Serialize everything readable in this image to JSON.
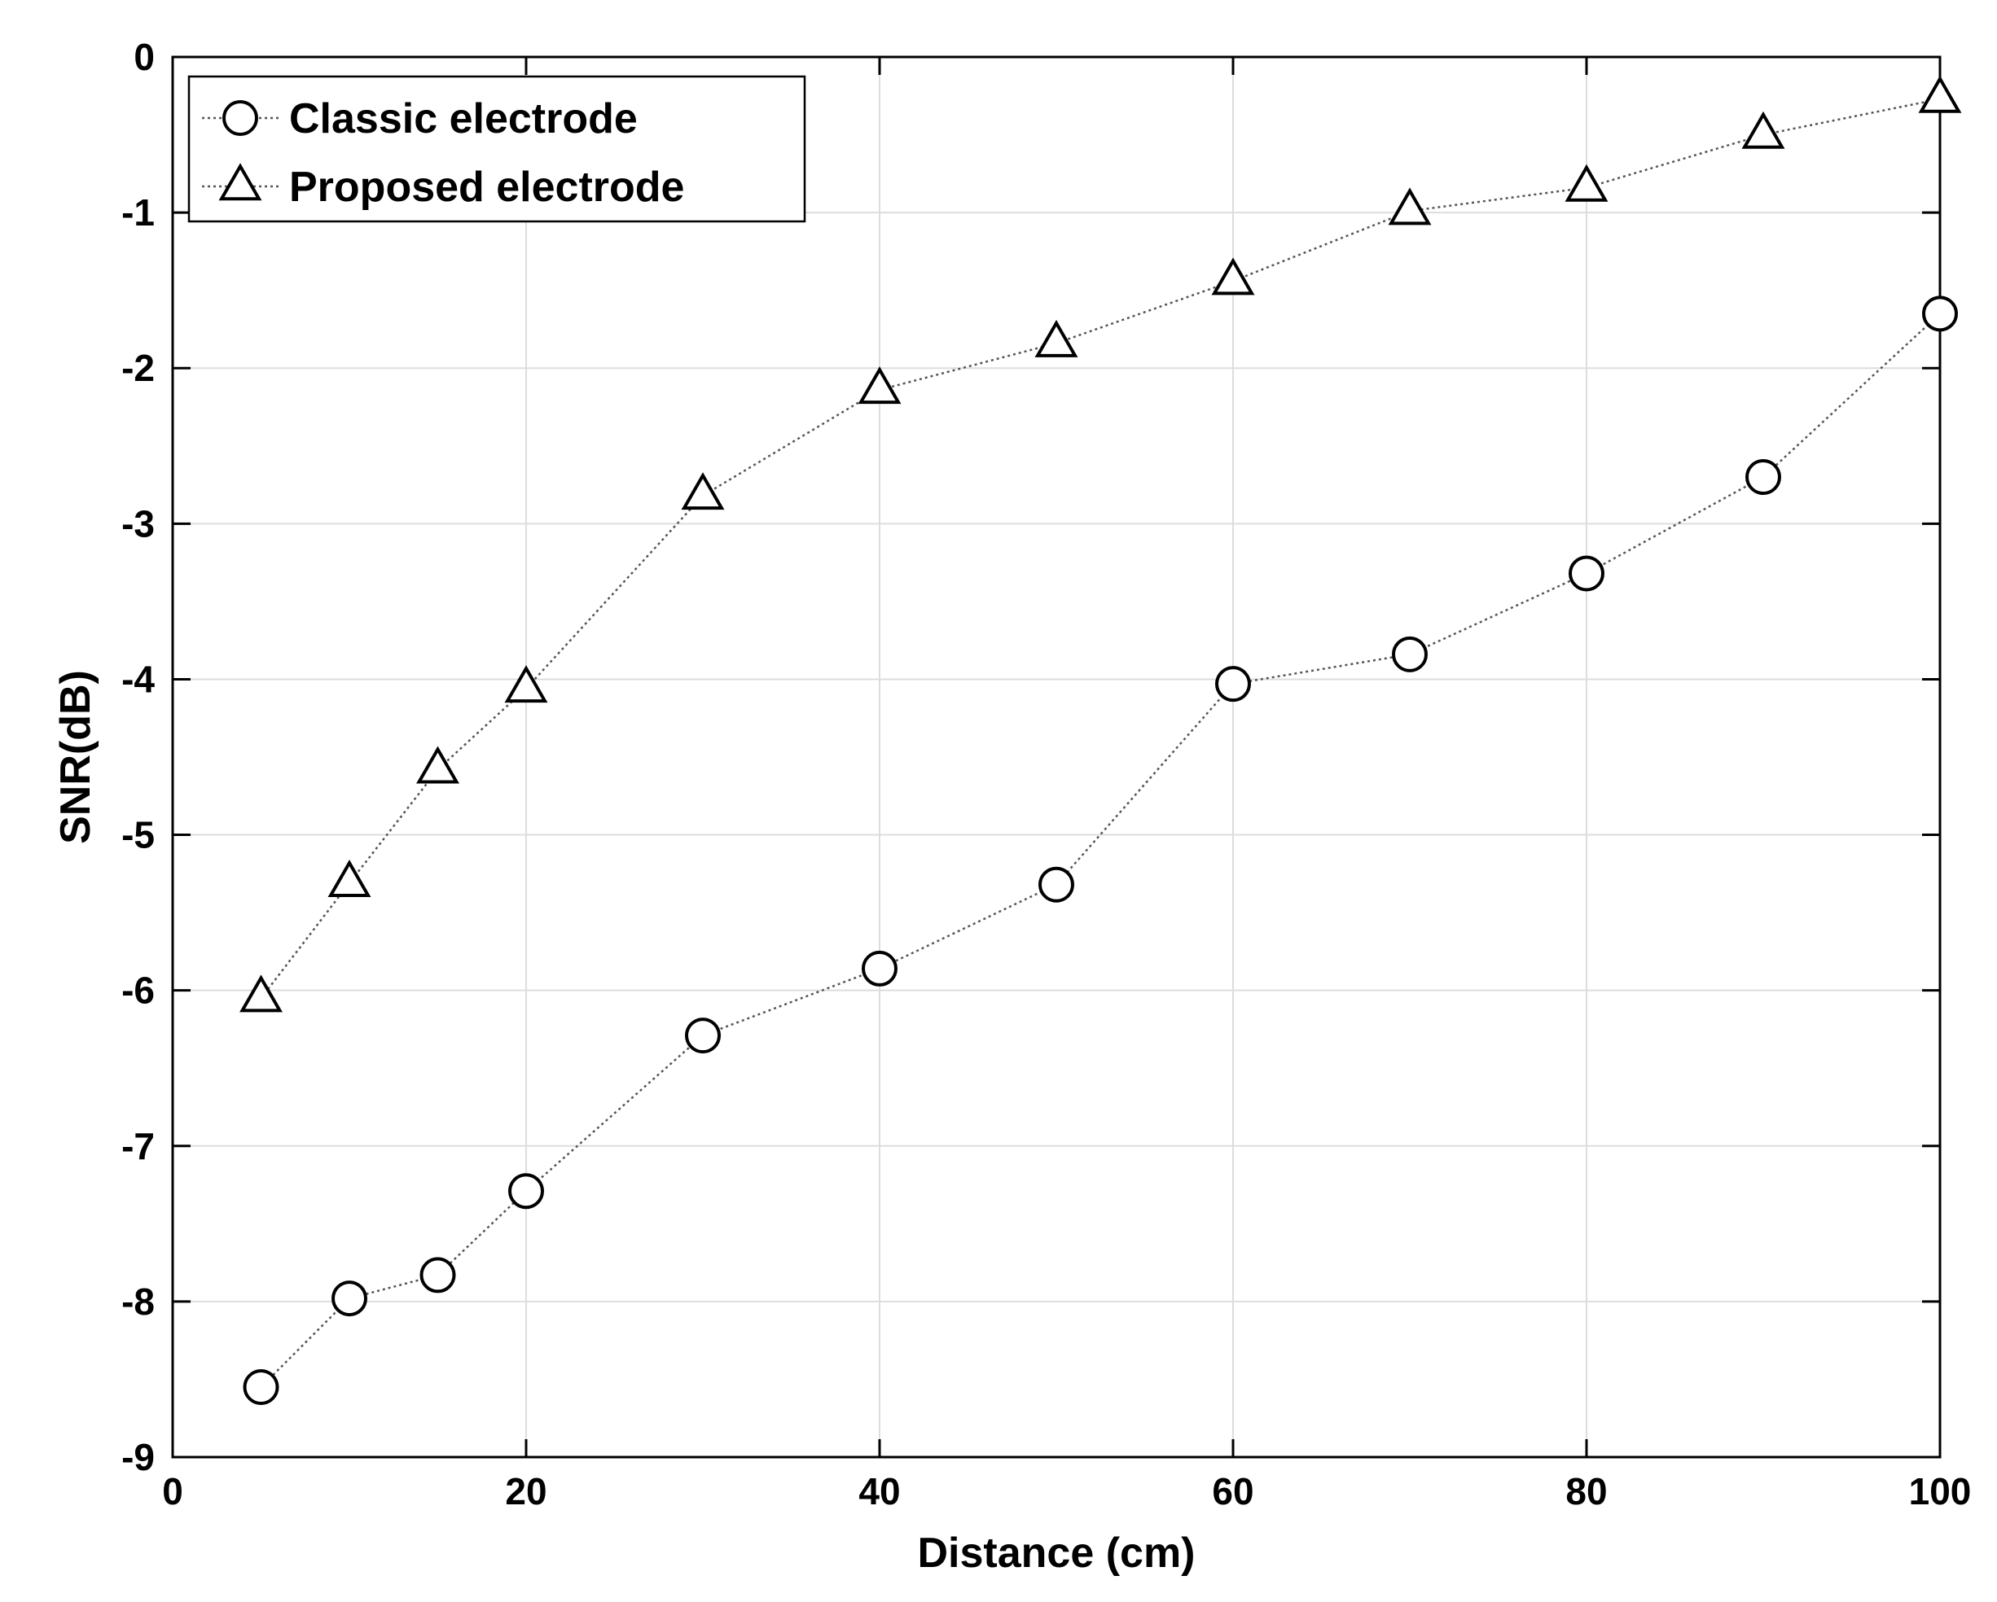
{
  "chart_data": {
    "type": "line",
    "xlabel": "Distance (cm)",
    "ylabel": "SNR(dB)",
    "xlim": [
      0,
      100
    ],
    "ylim": [
      -9,
      0
    ],
    "xticks": [
      0,
      20,
      40,
      60,
      80,
      100
    ],
    "yticks": [
      0,
      -1,
      -2,
      -3,
      -4,
      -5,
      -6,
      -7,
      -8,
      -9
    ],
    "x": [
      5,
      10,
      15,
      20,
      30,
      40,
      50,
      60,
      70,
      80,
      90,
      100
    ],
    "grid": true,
    "legend_position": "top-left",
    "series": [
      {
        "name": "Classic electrode",
        "marker": "circle",
        "line_style": "dotted",
        "values": [
          -8.55,
          -7.98,
          -7.83,
          -7.29,
          -6.29,
          -5.86,
          -5.32,
          -4.03,
          -3.84,
          -3.32,
          -2.7,
          -1.65
        ]
      },
      {
        "name": "Proposed electrode",
        "marker": "triangle",
        "line_style": "dotted",
        "values": [
          -6.05,
          -5.31,
          -4.58,
          -4.06,
          -2.82,
          -2.14,
          -1.84,
          -1.44,
          -0.99,
          -0.84,
          -0.5,
          -0.27
        ]
      }
    ],
    "colors": {
      "line": "#555555",
      "marker": "#000000",
      "grid": "#dddddd",
      "axis": "#000000"
    }
  }
}
